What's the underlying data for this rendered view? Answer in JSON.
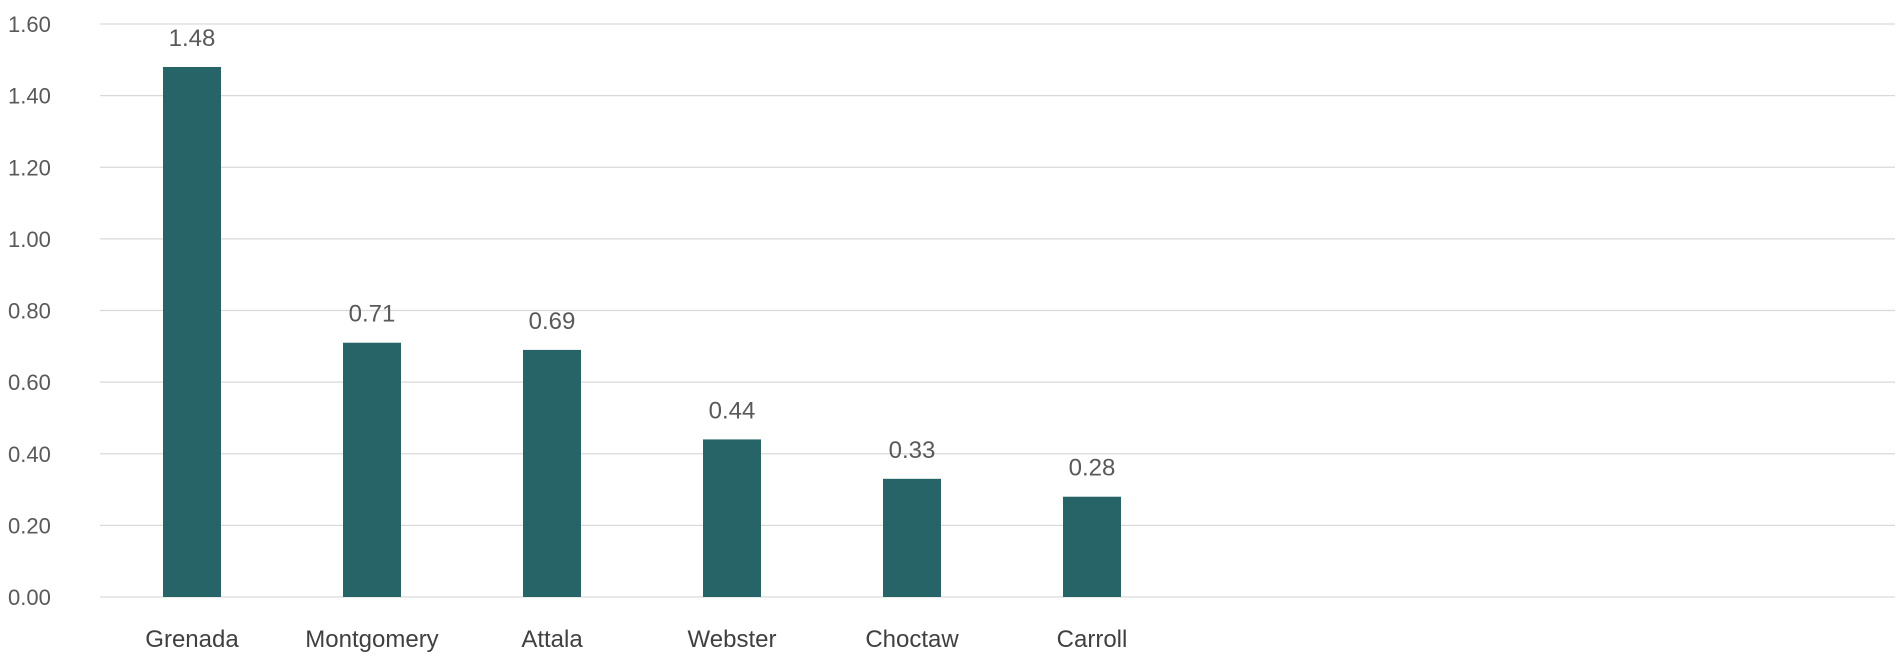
{
  "chart_data": {
    "type": "bar",
    "categories": [
      "Grenada",
      "Montgomery",
      "Attala",
      "Webster",
      "Choctaw",
      "Carroll"
    ],
    "values": [
      1.48,
      0.71,
      0.69,
      0.44,
      0.33,
      0.28
    ],
    "value_labels": [
      "1.48",
      "0.71",
      "0.69",
      "0.44",
      "0.33",
      "0.28"
    ],
    "ylim": [
      0,
      1.6
    ],
    "y_ticks": [
      0,
      0.2,
      0.4,
      0.6,
      0.8,
      1.0,
      1.2,
      1.4,
      1.6
    ],
    "y_tick_labels": [
      "0.00",
      "0.20",
      "0.40",
      "0.60",
      "0.80",
      "1.00",
      "1.20",
      "1.40",
      "1.60"
    ],
    "title": "",
    "xlabel": "",
    "ylabel": "",
    "grid": true,
    "legend": "none",
    "bar_color": "#276467",
    "grid_color": "#d9d9d9"
  }
}
